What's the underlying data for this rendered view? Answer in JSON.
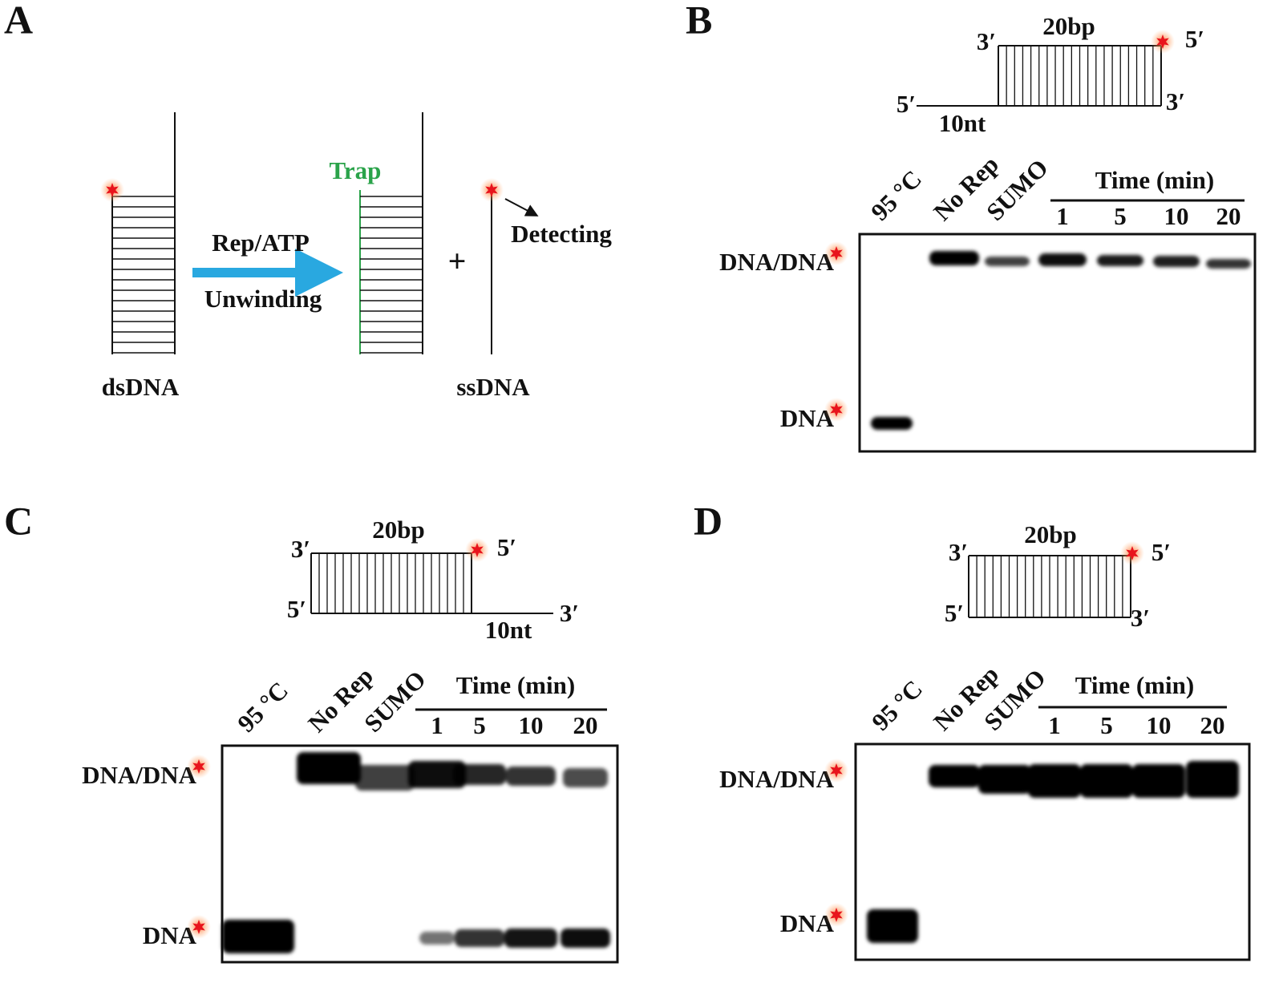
{
  "panels": [
    {
      "label": "A",
      "trap": "Trap",
      "arrow_top": "Rep/ATP",
      "arrow_bottom": "Unwinding",
      "plus": "+",
      "detecting": "Detecting",
      "left_caption": "dsDNA",
      "right_caption": "ssDNA"
    },
    {
      "label": "B",
      "length": "20bp",
      "ends": {
        "top_left": "3′",
        "top_right": "5′",
        "bottom_left": "5′",
        "bottom_right": "3′"
      },
      "overhang": "10nt",
      "lanes": [
        "95 °C",
        "No Rep",
        "SUMO"
      ],
      "time_header": "Time (min)",
      "times": [
        "1",
        "5",
        "10",
        "20"
      ],
      "rows": [
        "DNA/DNA",
        "DNA"
      ]
    },
    {
      "label": "C",
      "length": "20bp",
      "ends": {
        "top_left": "3′",
        "top_right": "5′",
        "bottom_left": "5′",
        "bottom_right": "3′"
      },
      "overhang": "10nt",
      "lanes": [
        "95 °C",
        "No Rep",
        "SUMO"
      ],
      "time_header": "Time (min)",
      "times": [
        "1",
        "5",
        "10",
        "20"
      ],
      "rows": [
        "DNA/DNA",
        "DNA"
      ]
    },
    {
      "label": "D",
      "length": "20bp",
      "ends": {
        "top_left": "3′",
        "top_right": "5′",
        "bottom_left": "5′",
        "bottom_right": "3′"
      },
      "lanes": [
        "95 °C",
        "No Rep",
        "SUMO"
      ],
      "time_header": "Time (min)",
      "times": [
        "1",
        "5",
        "10",
        "20"
      ],
      "rows": [
        "DNA/DNA",
        "DNA"
      ]
    }
  ]
}
